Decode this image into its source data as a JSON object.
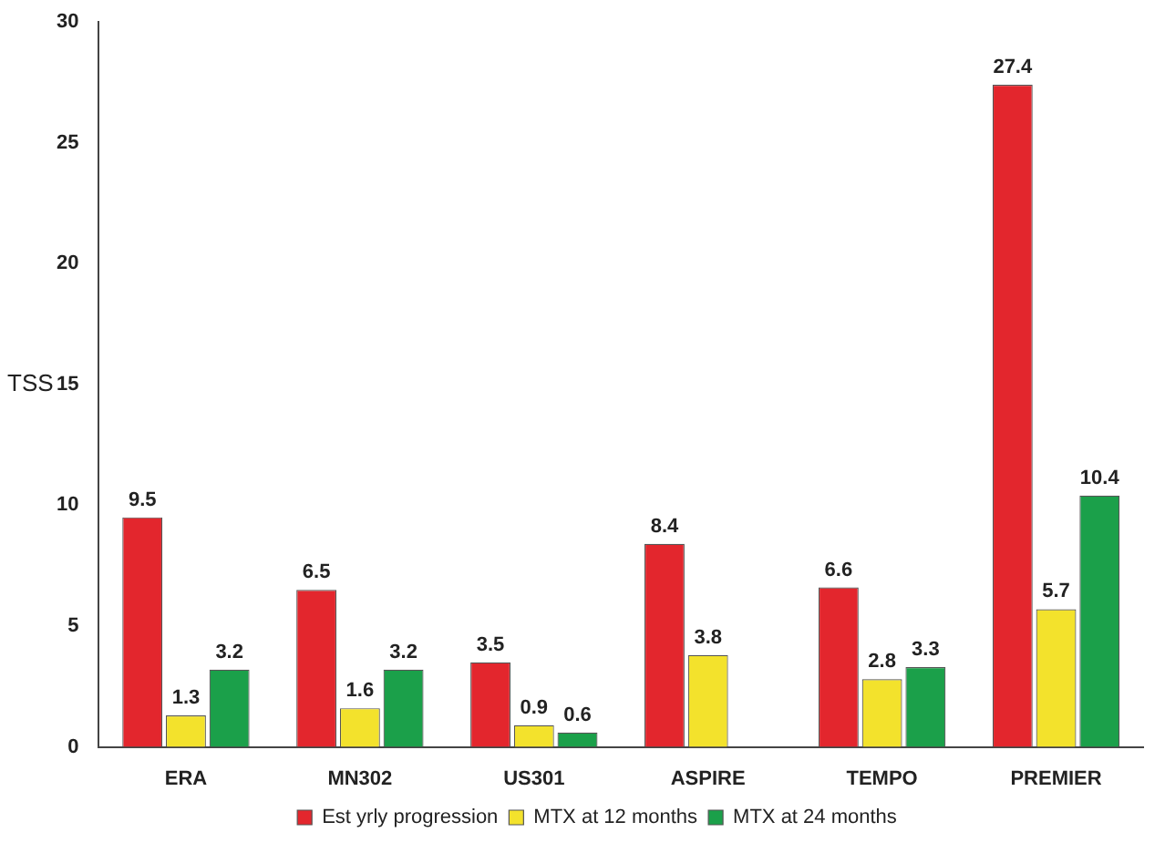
{
  "chart_data": {
    "type": "bar",
    "ylabel": "TSS",
    "categories": [
      "ERA",
      "MN302",
      "US301",
      "ASPIRE",
      "TEMPO",
      "PREMIER"
    ],
    "series": [
      {
        "name": "Est yrly progression",
        "color": "#e3262d",
        "values": [
          9.5,
          6.5,
          3.5,
          8.4,
          6.6,
          27.4
        ]
      },
      {
        "name": "MTX at 12 months",
        "color": "#f3e22c",
        "values": [
          1.3,
          1.6,
          0.9,
          3.8,
          2.8,
          5.7
        ]
      },
      {
        "name": "MTX at 24 months",
        "color": "#1ba04a",
        "values": [
          3.2,
          3.2,
          0.6,
          null,
          3.3,
          10.4
        ]
      }
    ],
    "ylim": [
      0,
      30
    ],
    "yticks": [
      0,
      5,
      10,
      15,
      20,
      25,
      30
    ],
    "grid": false,
    "legend": "bottom",
    "data_labels": true
  }
}
